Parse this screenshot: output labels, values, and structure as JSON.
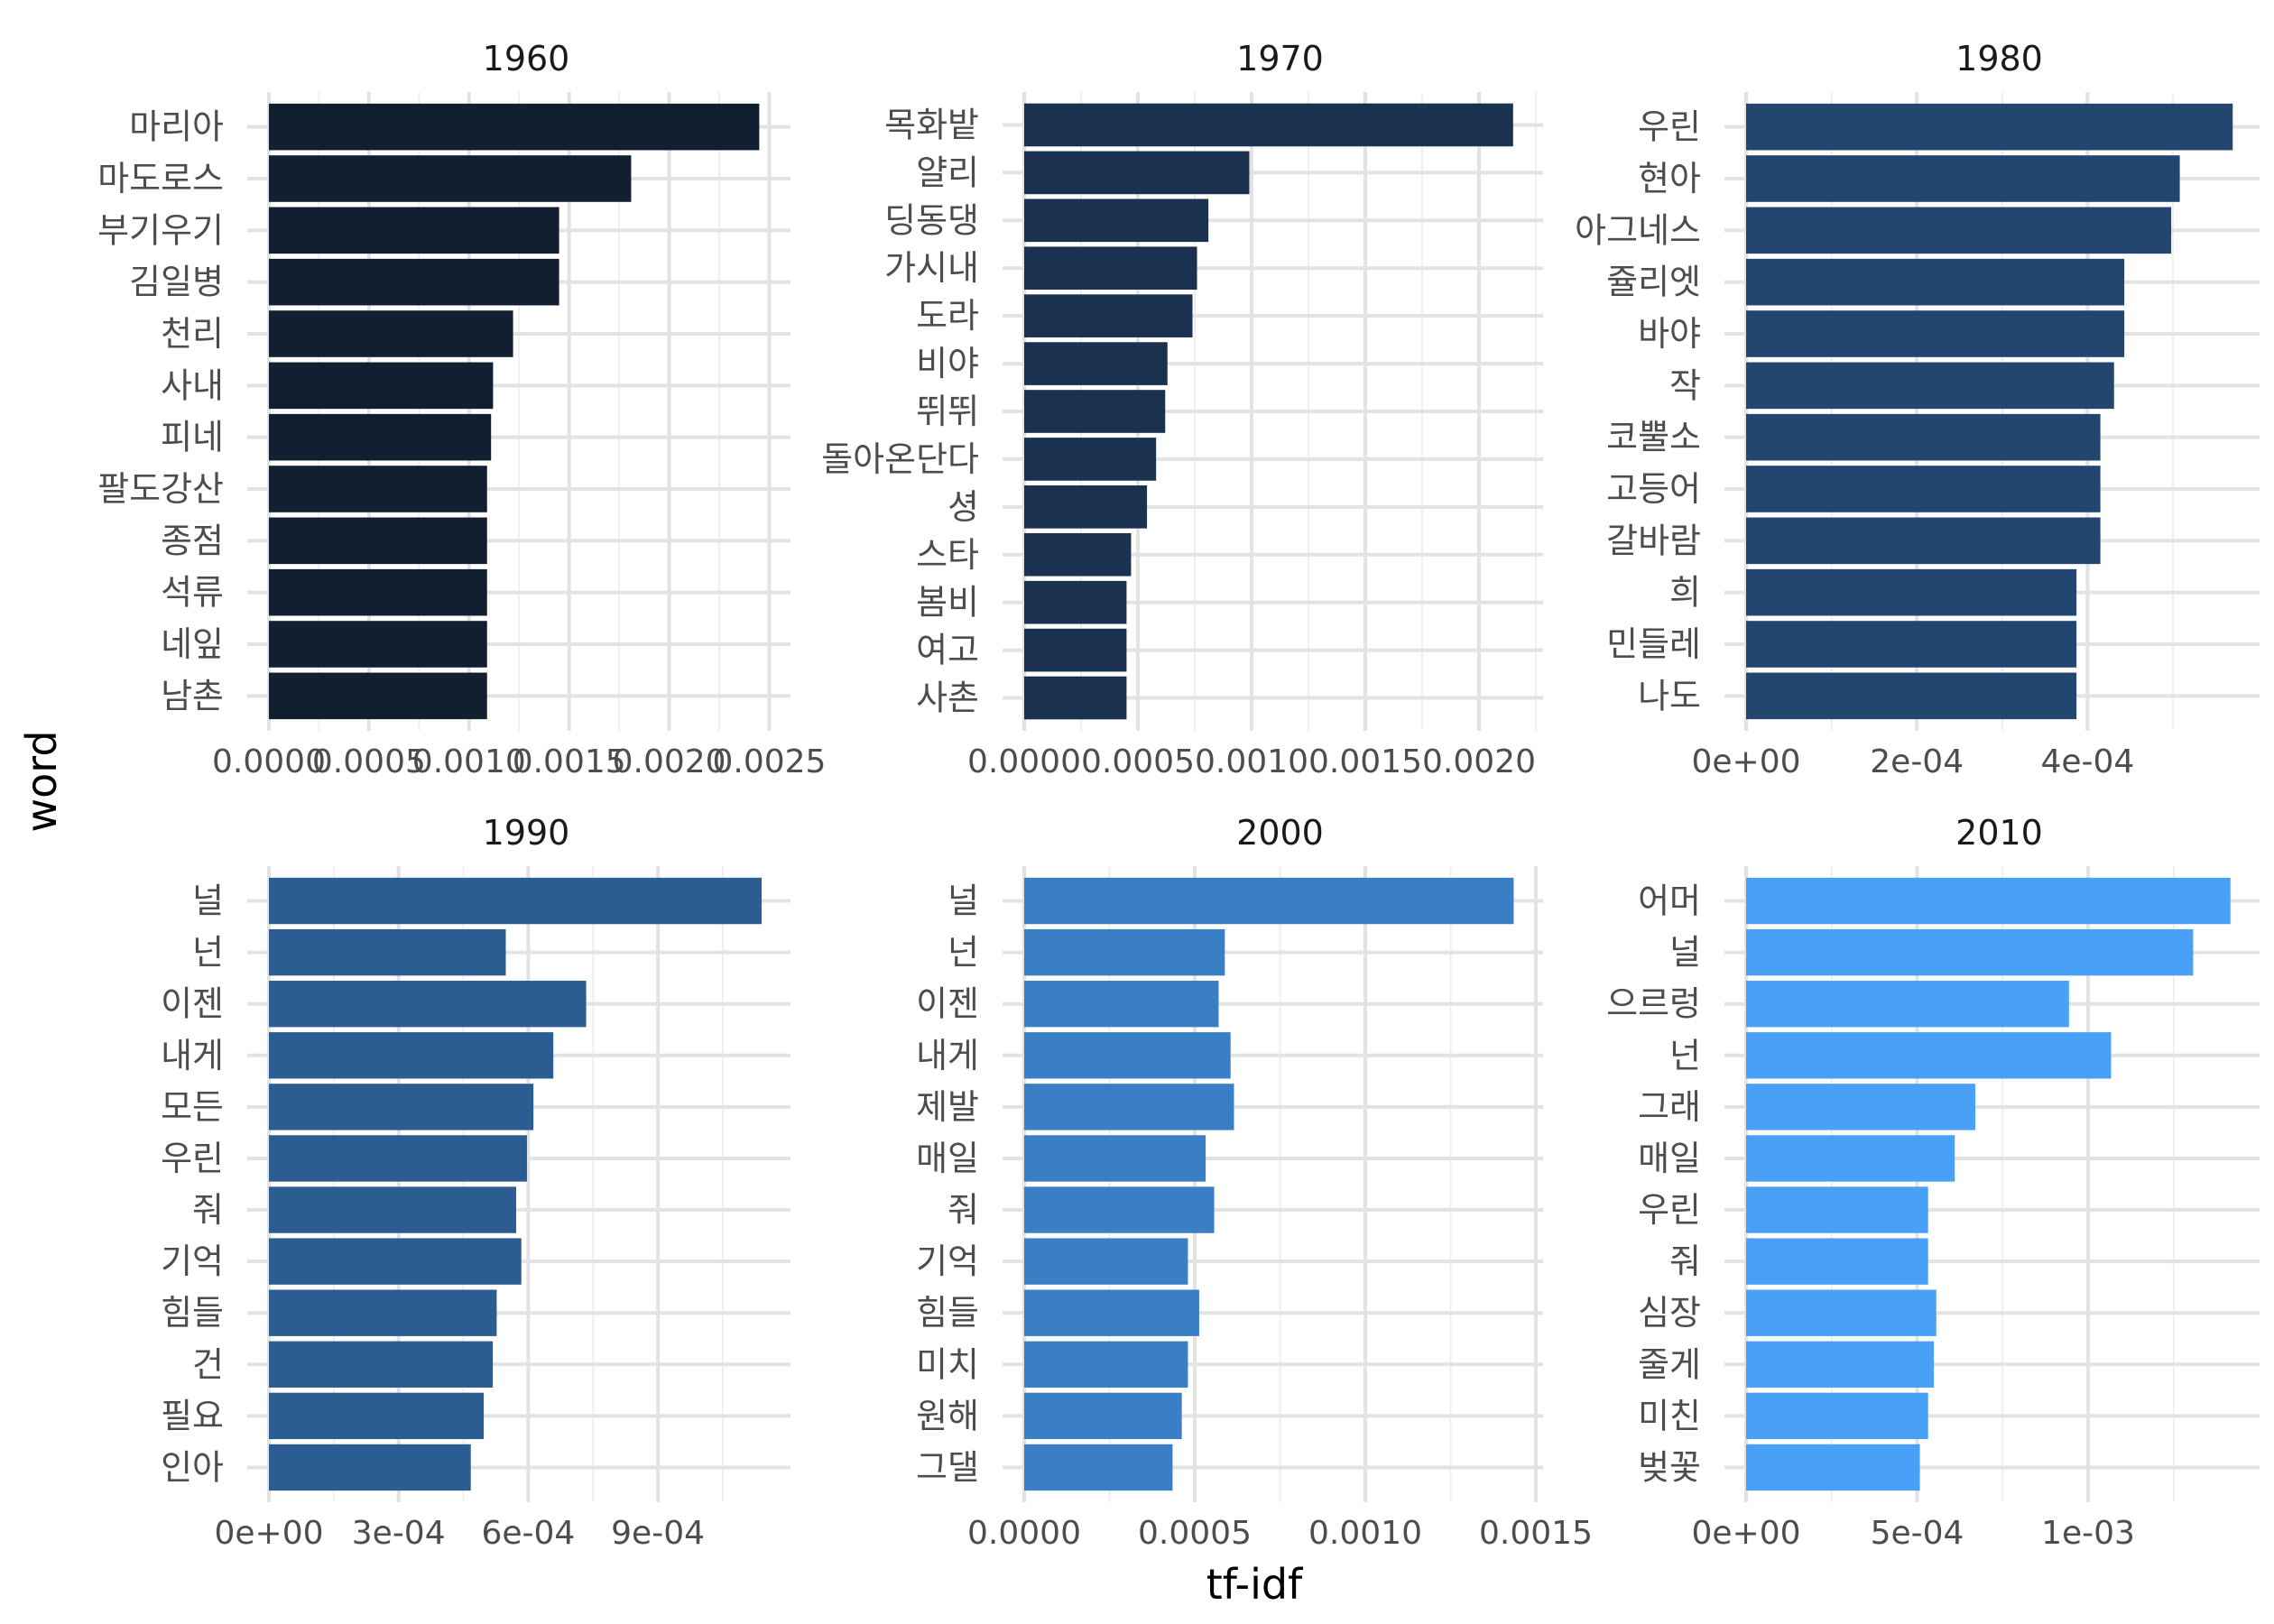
{
  "axes": {
    "xlabel": "tf-idf",
    "ylabel": "word"
  },
  "chart_data": [
    {
      "type": "bar",
      "orientation": "horizontal",
      "title": "1960",
      "color": "#121F31",
      "categories": [
        "마리아",
        "마도로스",
        "부기우기",
        "김일병",
        "천리",
        "사내",
        "피네",
        "팔도강산",
        "종점",
        "석류",
        "네잎",
        "남촌"
      ],
      "values": [
        0.00245,
        0.00181,
        0.00145,
        0.00145,
        0.00122,
        0.00112,
        0.00111,
        0.00109,
        0.00109,
        0.00109,
        0.00109,
        0.00109
      ],
      "xlim": [
        0,
        0.00257
      ],
      "xticks": [
        0,
        0.0005,
        0.001,
        0.0015,
        0.002,
        0.0025
      ],
      "xtick_labels": [
        "0.0000",
        "0.0005",
        "0.0010",
        "0.0015",
        "0.0020",
        "0.0025"
      ]
    },
    {
      "type": "bar",
      "orientation": "horizontal",
      "title": "1970",
      "color": "#1A3150",
      "categories": [
        "목화밭",
        "얄리",
        "딩동댕",
        "가시내",
        "도라",
        "비야",
        "뛰뛰",
        "돌아온단다",
        "셩",
        "스타",
        "봄비",
        "여고",
        "사촌"
      ],
      "values": [
        0.00215,
        0.00099,
        0.00081,
        0.00076,
        0.00074,
        0.00063,
        0.00062,
        0.00058,
        0.00054,
        0.00047,
        0.00045,
        0.00045,
        0.00045
      ],
      "xlim": [
        0,
        0.00225
      ],
      "xticks": [
        0,
        0.0005,
        0.001,
        0.0015,
        0.002
      ],
      "xtick_labels": [
        "0.0000",
        "0.0005",
        "0.0010",
        "0.0015",
        "0.0020"
      ]
    },
    {
      "type": "bar",
      "orientation": "horizontal",
      "title": "1980",
      "color": "#22466F",
      "categories": [
        "우린",
        "현아",
        "아그네스",
        "쥴리엣",
        "바야",
        "작",
        "코뿔소",
        "고등어",
        "갈바람",
        "희",
        "민들레",
        "나도"
      ],
      "values": [
        0.00057,
        0.000508,
        0.000498,
        0.000443,
        0.000443,
        0.000431,
        0.000415,
        0.000415,
        0.000415,
        0.000387,
        0.000387,
        0.000387
      ],
      "xlim": [
        0,
        0.000593
      ],
      "xticks": [
        0,
        0.0002,
        0.0004
      ],
      "xtick_labels": [
        "0e+00",
        "2e-04",
        "4e-04"
      ]
    },
    {
      "type": "bar",
      "orientation": "horizontal",
      "title": "1990",
      "color": "#2B5C92",
      "categories": [
        "널",
        "넌",
        "이젠",
        "내게",
        "모든",
        "우린",
        "줘",
        "기억",
        "힘들",
        "건",
        "필요",
        "인아"
      ],
      "values": [
        0.00114,
        0.000548,
        0.000734,
        0.000658,
        0.000612,
        0.000597,
        0.000572,
        0.000584,
        0.000527,
        0.000518,
        0.000497,
        0.000467
      ],
      "xlim": [
        0,
        0.00119
      ],
      "xticks": [
        0,
        0.0003,
        0.0006,
        0.0009
      ],
      "xtick_labels": [
        "0e+00",
        "3e-04",
        "6e-04",
        "9e-04"
      ]
    },
    {
      "type": "bar",
      "orientation": "horizontal",
      "title": "2000",
      "color": "#3A7EC5",
      "categories": [
        "널",
        "넌",
        "이젠",
        "내게",
        "제발",
        "매일",
        "줘",
        "기억",
        "힘들",
        "미치",
        "원해",
        "그댈"
      ],
      "values": [
        0.001435,
        0.000588,
        0.00057,
        0.000605,
        0.000615,
        0.000532,
        0.000557,
        0.00048,
        0.000513,
        0.00048,
        0.000462,
        0.000435
      ],
      "xlim": [
        0,
        0.0015
      ],
      "xticks": [
        0,
        0.0005,
        0.001,
        0.0015
      ],
      "xtick_labels": [
        "0.0000",
        "0.0005",
        "0.0010",
        "0.0015"
      ]
    },
    {
      "type": "bar",
      "orientation": "horizontal",
      "title": "2010",
      "color": "#48A1F6",
      "categories": [
        "어머",
        "널",
        "으르렁",
        "넌",
        "그래",
        "매일",
        "우린",
        "줘",
        "심장",
        "줄게",
        "미친",
        "벚꽃"
      ],
      "values": [
        0.001416,
        0.001307,
        0.000944,
        0.001067,
        0.00067,
        0.00061,
        0.000532,
        0.000532,
        0.000556,
        0.000549,
        0.000532,
        0.000508
      ],
      "xlim": [
        0,
        0.00148
      ],
      "xticks": [
        0,
        0.0005,
        0.001
      ],
      "xtick_labels": [
        "0e+00",
        "5e-04",
        "1e-03"
      ]
    }
  ]
}
